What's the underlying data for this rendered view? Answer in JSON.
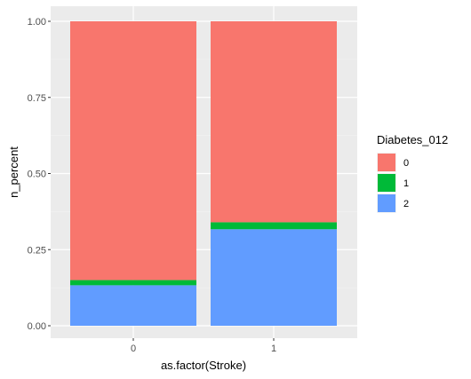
{
  "chart_data": {
    "type": "bar",
    "stacked": true,
    "categories": [
      "0",
      "1"
    ],
    "xlabel": "as.factor(Stroke)",
    "ylabel": "n_percent",
    "ylim": [
      0,
      1
    ],
    "yticks": [
      "0.00",
      "0.25",
      "0.50",
      "0.75",
      "1.00"
    ],
    "grid": true,
    "legend": {
      "title": "Diabetes_012",
      "placement": "right"
    },
    "series": [
      {
        "name": "0",
        "color": "#F8766D",
        "values": [
          0.85,
          0.66
        ]
      },
      {
        "name": "1",
        "color": "#00BA38",
        "values": [
          0.017,
          0.023
        ]
      },
      {
        "name": "2",
        "color": "#619CFF",
        "values": [
          0.133,
          0.317
        ]
      }
    ]
  }
}
